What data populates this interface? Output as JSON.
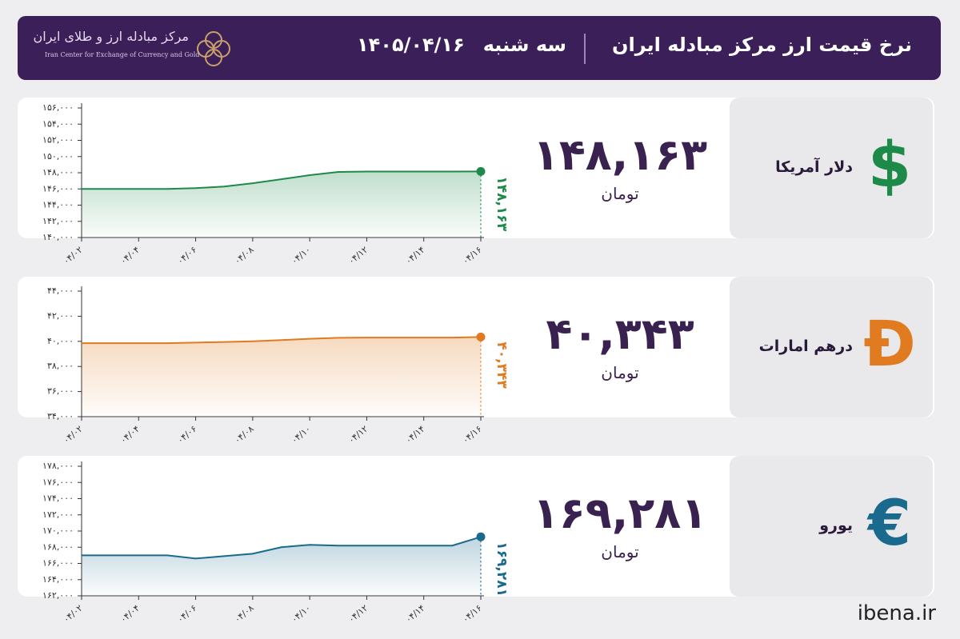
{
  "header": {
    "title": "نرخ قیمت ارز مرکز مبادله ایران",
    "day": "سه شنبه",
    "date": "۱۴۰۵/۰۴/۱۶",
    "logo_text": "مرکز مبادله ارز و طلای ایران",
    "logo_subtitle": "Iran Center for Exchange of Currency and Gold"
  },
  "cards": [
    {
      "icon": "$",
      "name": "دلار آمریکا",
      "price": "۱۴۸,۱۶۳",
      "unit": "تومان"
    },
    {
      "icon": "Đ",
      "name": "درهم امارات",
      "price": "۴۰,۳۴۳",
      "unit": "تومان"
    },
    {
      "icon": "€",
      "name": "یورو",
      "price": "۱۶۹,۲۸۱",
      "unit": "تومان"
    }
  ],
  "footer": "ibena.ir",
  "chart_data": [
    {
      "type": "line",
      "color": "#1e8a4a",
      "categories": [
        "۰۴/۰۲",
        null,
        "۰۴/۰۴",
        null,
        "۰۴/۰۶",
        null,
        "۰۴/۰۸",
        null,
        "۰۴/۱۰",
        null,
        "۰۴/۱۲",
        null,
        "۰۴/۱۴",
        null,
        "۰۴/۱۶"
      ],
      "values": [
        146000,
        146000,
        146000,
        146000,
        146100,
        146300,
        146700,
        147200,
        147700,
        148100,
        148150,
        148150,
        148150,
        148150,
        148163
      ],
      "value_labels": [
        null,
        null,
        null,
        null,
        null,
        null,
        null,
        null,
        null,
        null,
        null,
        null,
        null,
        null,
        "۱۴۸,۱۶۳"
      ],
      "ylim": [
        140000,
        156000
      ],
      "yticks": [
        {
          "value": 140000,
          "label": "۱۴۰,۰۰۰"
        },
        {
          "value": 142000,
          "label": "۱۴۲,۰۰۰"
        },
        {
          "value": 144000,
          "label": "۱۴۴,۰۰۰"
        },
        {
          "value": 146000,
          "label": "۱۴۶,۰۰۰"
        },
        {
          "value": 148000,
          "label": "۱۴۸,۰۰۰"
        },
        {
          "value": 150000,
          "label": "۱۵۰,۰۰۰"
        },
        {
          "value": 152000,
          "label": "۱۵۲,۰۰۰"
        },
        {
          "value": 154000,
          "label": "۱۵۴,۰۰۰"
        },
        {
          "value": 156000,
          "label": "۱۵۶,۰۰۰"
        }
      ]
    },
    {
      "type": "line",
      "color": "#e07b1f",
      "categories": [
        "۰۴/۰۲",
        null,
        "۰۴/۰۴",
        null,
        "۰۴/۰۶",
        null,
        "۰۴/۰۸",
        null,
        "۰۴/۱۰",
        null,
        "۰۴/۱۲",
        null,
        "۰۴/۱۴",
        null,
        "۰۴/۱۶"
      ],
      "values": [
        39850,
        39850,
        39850,
        39850,
        39900,
        39950,
        40000,
        40100,
        40200,
        40280,
        40300,
        40300,
        40300,
        40300,
        40343
      ],
      "value_labels": [
        null,
        null,
        null,
        null,
        null,
        null,
        null,
        null,
        null,
        null,
        null,
        null,
        null,
        null,
        "۴۰,۳۴۳"
      ],
      "ylim": [
        34000,
        44000
      ],
      "yticks": [
        {
          "value": 34000,
          "label": "۳۴,۰۰۰"
        },
        {
          "value": 36000,
          "label": "۳۶,۰۰۰"
        },
        {
          "value": 38000,
          "label": "۳۸,۰۰۰"
        },
        {
          "value": 40000,
          "label": "۴۰,۰۰۰"
        },
        {
          "value": 42000,
          "label": "۴۲,۰۰۰"
        },
        {
          "value": 44000,
          "label": "۴۴,۰۰۰"
        }
      ]
    },
    {
      "type": "line",
      "color": "#1a6a8e",
      "categories": [
        "۰۴/۰۲",
        null,
        "۰۴/۰۴",
        null,
        "۰۴/۰۶",
        null,
        "۰۴/۰۸",
        null,
        "۰۴/۱۰",
        null,
        "۰۴/۱۲",
        null,
        "۰۴/۱۴",
        null,
        "۰۴/۱۶"
      ],
      "values": [
        167000,
        167000,
        167000,
        167000,
        166600,
        166900,
        167200,
        168000,
        168300,
        168200,
        168200,
        168200,
        168200,
        168200,
        169281
      ],
      "value_labels": [
        null,
        null,
        null,
        null,
        null,
        null,
        null,
        null,
        null,
        null,
        null,
        null,
        null,
        null,
        "۱۶۹,۲۸۱"
      ],
      "ylim": [
        162000,
        178000
      ],
      "yticks": [
        {
          "value": 162000,
          "label": "۱۶۲,۰۰۰"
        },
        {
          "value": 164000,
          "label": "۱۶۴,۰۰۰"
        },
        {
          "value": 166000,
          "label": "۱۶۶,۰۰۰"
        },
        {
          "value": 168000,
          "label": "۱۶۸,۰۰۰"
        },
        {
          "value": 170000,
          "label": "۱۷۰,۰۰۰"
        },
        {
          "value": 172000,
          "label": "۱۷۲,۰۰۰"
        },
        {
          "value": 174000,
          "label": "۱۷۴,۰۰۰"
        },
        {
          "value": 176000,
          "label": "۱۷۶,۰۰۰"
        },
        {
          "value": 178000,
          "label": "۱۷۸,۰۰۰"
        }
      ]
    }
  ]
}
